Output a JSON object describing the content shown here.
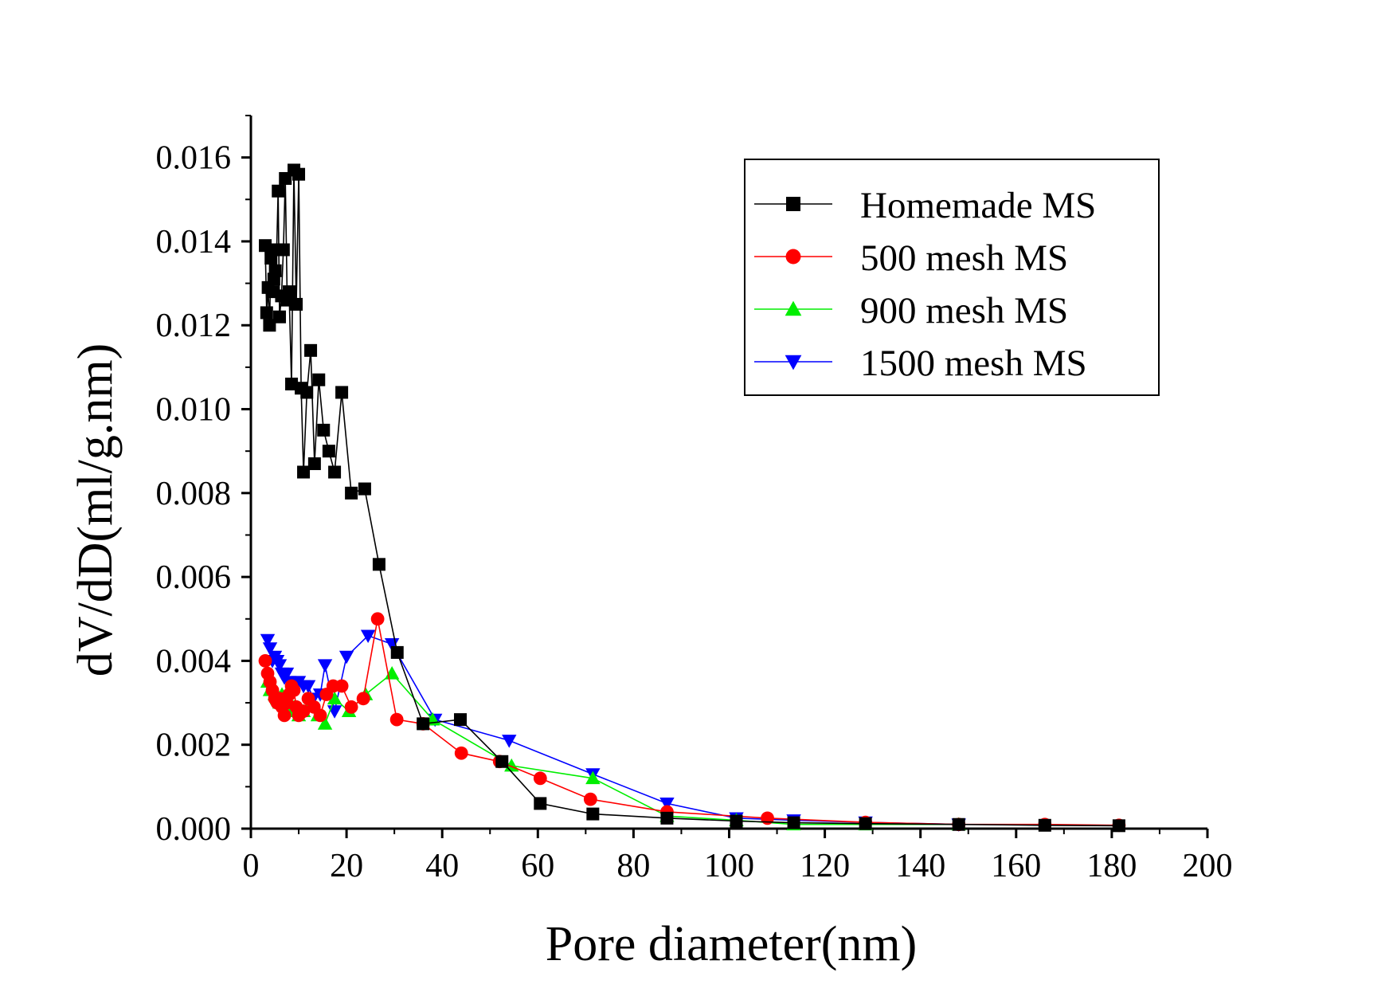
{
  "chart_data": {
    "type": "line",
    "xlabel": "Pore diameter(nm)",
    "ylabel": "dV/dD(ml/g.nm)",
    "xlim": [
      0,
      200
    ],
    "ylim": [
      0,
      0.017
    ],
    "xticks": [
      0,
      20,
      40,
      60,
      80,
      100,
      120,
      140,
      160,
      180,
      200
    ],
    "yticks": [
      0.0,
      0.002,
      0.004,
      0.006,
      0.008,
      0.01,
      0.012,
      0.014,
      0.016
    ],
    "ytick_labels": [
      "0.000",
      "0.002",
      "0.004",
      "0.006",
      "0.008",
      "0.010",
      "0.012",
      "0.014",
      "0.016"
    ],
    "legend_position": "top-right",
    "grid": false,
    "series": [
      {
        "name": "Homemade MS",
        "color": "#000000",
        "marker": "square",
        "x": [
          3.0,
          3.3,
          3.6,
          3.9,
          4.2,
          4.5,
          4.8,
          5.1,
          5.4,
          5.7,
          6.0,
          6.4,
          6.8,
          7.2,
          7.6,
          8.0,
          8.5,
          9.0,
          9.5,
          10.0,
          10.5,
          11.0,
          11.7,
          12.5,
          13.3,
          14.2,
          15.2,
          16.3,
          17.5,
          19.0,
          21.0,
          23.8,
          26.8,
          30.6,
          36.0,
          43.8,
          52.5,
          60.5,
          71.5,
          87.0,
          101.5,
          113.5,
          128.5,
          148.0,
          166.0,
          181.5
        ],
        "values": [
          0.0139,
          0.0123,
          0.0129,
          0.012,
          0.0136,
          0.0128,
          0.0131,
          0.0133,
          0.0138,
          0.0152,
          0.0122,
          0.0127,
          0.0138,
          0.0155,
          0.0126,
          0.0128,
          0.0106,
          0.0157,
          0.0125,
          0.0156,
          0.0105,
          0.0085,
          0.0104,
          0.0114,
          0.0087,
          0.0107,
          0.0095,
          0.009,
          0.0085,
          0.0104,
          0.008,
          0.0081,
          0.0063,
          0.0042,
          0.0025,
          0.0026,
          0.0016,
          0.0006,
          0.00035,
          0.00025,
          0.00018,
          0.00014,
          0.00012,
          0.0001,
          8e-05,
          7e-05
        ]
      },
      {
        "name": "500 mesh MS",
        "color": "#ff0000",
        "marker": "circle",
        "x": [
          3.0,
          3.5,
          4.0,
          4.5,
          5.0,
          5.5,
          6.0,
          6.5,
          7.0,
          7.5,
          8.0,
          8.5,
          9.0,
          9.5,
          10.0,
          11.0,
          12.0,
          13.2,
          14.5,
          15.8,
          17.2,
          19.0,
          21.0,
          23.5,
          26.5,
          30.5,
          36.0,
          44.0,
          52.0,
          60.5,
          71.0,
          87.0,
          108.0,
          128.5,
          148.0,
          166.0,
          181.5
        ],
        "values": [
          0.004,
          0.0037,
          0.0035,
          0.0033,
          0.0031,
          0.003,
          0.0031,
          0.0029,
          0.0027,
          0.003,
          0.0032,
          0.0034,
          0.0033,
          0.0029,
          0.0027,
          0.0028,
          0.0031,
          0.0029,
          0.0027,
          0.0032,
          0.0034,
          0.0034,
          0.0029,
          0.0031,
          0.005,
          0.0026,
          0.0025,
          0.0018,
          0.0016,
          0.0012,
          0.0007,
          0.0004,
          0.00025,
          0.00015,
          0.0001,
          0.0001,
          8e-05
        ]
      },
      {
        "name": "900 mesh MS",
        "color": "#00ee00",
        "marker": "triangle-up",
        "x": [
          3.5,
          4.0,
          4.5,
          5.0,
          5.5,
          6.0,
          6.5,
          7.0,
          7.5,
          8.0,
          8.5,
          9.0,
          10.0,
          11.0,
          12.5,
          14.0,
          15.5,
          17.5,
          20.5,
          24.0,
          29.5,
          38.0,
          54.5,
          71.5,
          87.0,
          101.5,
          113.5,
          128.5,
          148.0
        ],
        "values": [
          0.0035,
          0.0033,
          0.0034,
          0.0032,
          0.0031,
          0.003,
          0.0032,
          0.003,
          0.0029,
          0.003,
          0.0028,
          0.0029,
          0.0027,
          0.0028,
          0.003,
          0.0027,
          0.0025,
          0.0031,
          0.0028,
          0.0032,
          0.0037,
          0.0026,
          0.0015,
          0.0012,
          0.0003,
          0.0002,
          0.0001,
          0.0001,
          0.0001
        ]
      },
      {
        "name": "1500 mesh MS",
        "color": "#0000ff",
        "marker": "triangle-down",
        "x": [
          3.5,
          4.0,
          4.5,
          5.0,
          5.5,
          6.0,
          6.5,
          7.0,
          7.5,
          8.0,
          8.5,
          9.0,
          10.0,
          11.0,
          12.0,
          13.0,
          14.5,
          15.5,
          17.5,
          20.0,
          24.5,
          29.5,
          38.5,
          54.0,
          71.5,
          87.0,
          101.5,
          113.5,
          128.5,
          148.0
        ],
        "values": [
          0.0045,
          0.0043,
          0.004,
          0.0041,
          0.004,
          0.0039,
          0.0037,
          0.0036,
          0.0037,
          0.0035,
          0.0034,
          0.0033,
          0.0035,
          0.0034,
          0.0034,
          0.0031,
          0.0032,
          0.0039,
          0.0028,
          0.0041,
          0.0046,
          0.0044,
          0.0026,
          0.0021,
          0.0013,
          0.0006,
          0.00025,
          0.0002,
          0.00015,
          0.0001
        ]
      }
    ]
  }
}
